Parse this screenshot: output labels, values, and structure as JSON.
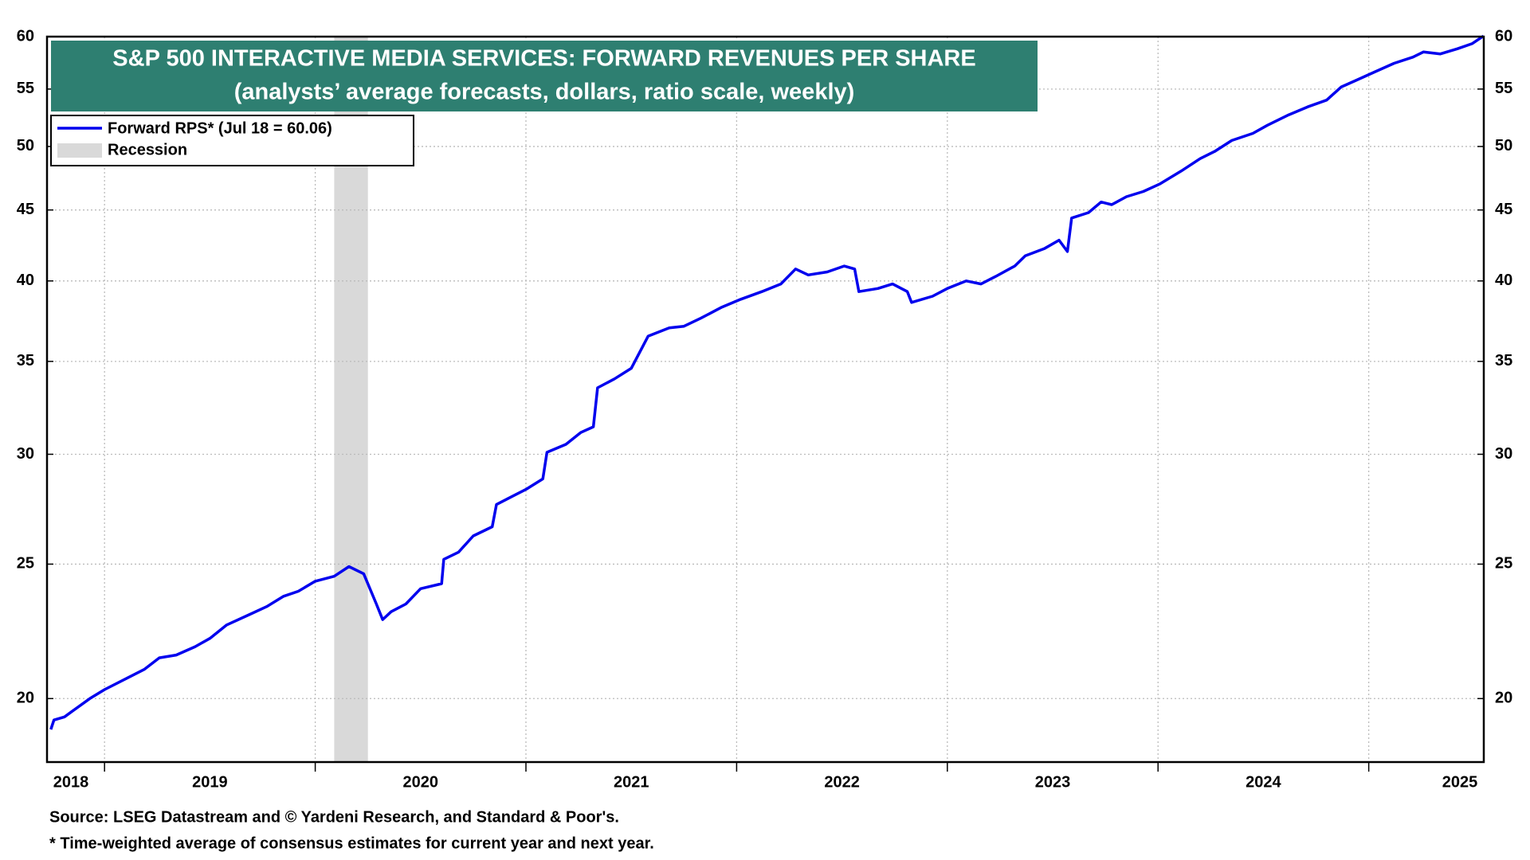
{
  "chart_data": {
    "type": "line",
    "title": "S&P 500 INTERACTIVE MEDIA SERVICES: FORWARD REVENUES PER SHARE",
    "subtitle": "(analysts’ average forecasts, dollars, ratio scale, weekly)",
    "notes": [
      "Source: LSEG Datastream and © Yardeni Research, and Standard & Poor's.",
      "* Time-weighted average of consensus estimates for current year and next year."
    ],
    "x": [
      2018.745,
      2018.76,
      2018.81,
      2018.85,
      2018.93,
      2019.0,
      2019.11,
      2019.19,
      2019.26,
      2019.34,
      2019.43,
      2019.5,
      2019.58,
      2019.69,
      2019.77,
      2019.85,
      2019.92,
      2020.0,
      2020.09,
      2020.16,
      2020.23,
      2020.29,
      2020.32,
      2020.36,
      2020.43,
      2020.5,
      2020.6,
      2020.61,
      2020.68,
      2020.75,
      2020.84,
      2020.86,
      2020.94,
      2021.0,
      2021.08,
      2021.1,
      2021.19,
      2021.26,
      2021.32,
      2021.34,
      2021.42,
      2021.5,
      2021.58,
      2021.68,
      2021.75,
      2021.83,
      2021.93,
      2022.02,
      2022.12,
      2022.21,
      2022.28,
      2022.34,
      2022.43,
      2022.51,
      2022.56,
      2022.58,
      2022.67,
      2022.74,
      2022.81,
      2022.83,
      2022.93,
      2023.0,
      2023.09,
      2023.16,
      2023.23,
      2023.32,
      2023.37,
      2023.46,
      2023.53,
      2023.57,
      2023.59,
      2023.67,
      2023.73,
      2023.78,
      2023.85,
      2023.93,
      2024.01,
      2024.11,
      2024.2,
      2024.27,
      2024.35,
      2024.45,
      2024.52,
      2024.62,
      2024.71,
      2024.8,
      2024.87,
      2024.94,
      2025.03,
      2025.12,
      2025.21,
      2025.26,
      2025.34,
      2025.42,
      2025.49,
      2025.545
    ],
    "series": [
      {
        "name": "Forward RPS* (Jul 18 = 60.06)",
        "color": "#0000ee",
        "values": [
          19.0,
          19.3,
          19.4,
          19.6,
          20.0,
          20.3,
          20.7,
          21.0,
          21.4,
          21.5,
          21.8,
          22.1,
          22.6,
          23.0,
          23.3,
          23.7,
          23.9,
          24.3,
          24.5,
          24.9,
          24.6,
          23.4,
          22.8,
          23.1,
          23.4,
          24.0,
          24.2,
          25.2,
          25.5,
          26.2,
          26.6,
          27.6,
          28.0,
          28.3,
          28.8,
          30.1,
          30.5,
          31.1,
          31.4,
          33.5,
          34.0,
          34.6,
          36.5,
          37.0,
          37.1,
          37.6,
          38.3,
          38.8,
          39.3,
          39.8,
          40.8,
          40.4,
          40.6,
          41.0,
          40.8,
          39.3,
          39.5,
          39.8,
          39.3,
          38.6,
          39.0,
          39.5,
          40.0,
          39.8,
          40.3,
          41.0,
          41.7,
          42.2,
          42.8,
          42.0,
          44.4,
          44.8,
          45.6,
          45.4,
          46.0,
          46.4,
          47.0,
          48.0,
          49.0,
          49.6,
          50.5,
          51.1,
          51.8,
          52.7,
          53.4,
          54.0,
          55.2,
          55.8,
          56.6,
          57.4,
          58.0,
          58.5,
          58.3,
          58.8,
          59.3,
          60.06
        ]
      }
    ],
    "shading": {
      "name": "Recession",
      "x": [
        2020.09,
        2020.25
      ],
      "color": "#d9d9d9"
    },
    "xlim": [
      2018.727,
      2025.546
    ],
    "xticks": [
      2018,
      2019,
      2020,
      2021,
      2022,
      2023,
      2024,
      2025
    ],
    "ylim": [
      18,
      60
    ],
    "yticks": [
      20,
      25,
      30,
      35,
      40,
      45,
      50,
      55,
      60
    ],
    "log_scale": true,
    "grid": true,
    "title_background": "#2e7f71"
  }
}
